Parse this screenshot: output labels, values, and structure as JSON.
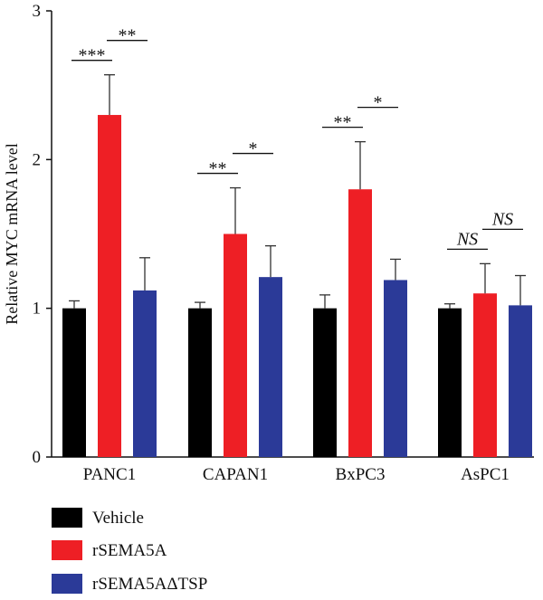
{
  "chart_data": {
    "type": "bar",
    "categories": [
      "PANC1",
      "CAPAN1",
      "BxPC3",
      "AsPC1"
    ],
    "series": [
      {
        "name": "Vehicle",
        "color": "#000000",
        "values": [
          1.0,
          1.0,
          1.0,
          1.0
        ],
        "errors": [
          0.05,
          0.04,
          0.09,
          0.03
        ]
      },
      {
        "name": "rSEMA5A",
        "color": "#ee1f25",
        "values": [
          2.3,
          1.5,
          1.8,
          1.1
        ],
        "errors": [
          0.27,
          0.31,
          0.32,
          0.2
        ]
      },
      {
        "name": "rSEMA5AΔTSP",
        "color": "#2b3a98",
        "values": [
          1.12,
          1.21,
          1.19,
          1.02
        ],
        "errors": [
          0.22,
          0.21,
          0.14,
          0.2
        ]
      }
    ],
    "ylabel": "Relative MYC mRNA level",
    "ylim": [
      0,
      3
    ],
    "yticks": [
      "0",
      "1",
      "2",
      "3"
    ],
    "grid": false,
    "legend_position": "bottom-left",
    "significance": [
      {
        "category": "PANC1",
        "pair": [
          "Vehicle",
          "rSEMA5A"
        ],
        "label": "***"
      },
      {
        "category": "PANC1",
        "pair": [
          "rSEMA5A",
          "rSEMA5AΔTSP"
        ],
        "label": "**"
      },
      {
        "category": "CAPAN1",
        "pair": [
          "Vehicle",
          "rSEMA5A"
        ],
        "label": "**"
      },
      {
        "category": "CAPAN1",
        "pair": [
          "rSEMA5A",
          "rSEMA5AΔTSP"
        ],
        "label": "*"
      },
      {
        "category": "BxPC3",
        "pair": [
          "Vehicle",
          "rSEMA5A"
        ],
        "label": "**"
      },
      {
        "category": "BxPC3",
        "pair": [
          "rSEMA5A",
          "rSEMA5AΔTSP"
        ],
        "label": "*"
      },
      {
        "category": "AsPC1",
        "pair": [
          "Vehicle",
          "rSEMA5A"
        ],
        "label": "NS"
      },
      {
        "category": "AsPC1",
        "pair": [
          "rSEMA5A",
          "rSEMA5AΔTSP"
        ],
        "label": "NS"
      }
    ]
  }
}
